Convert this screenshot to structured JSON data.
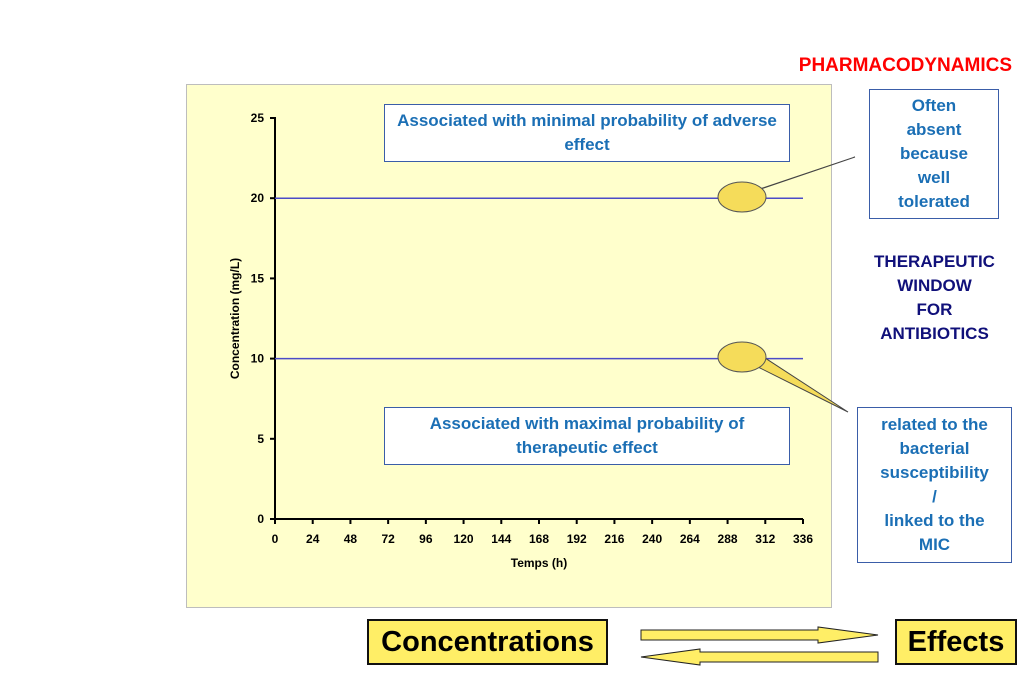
{
  "header": {
    "title": "PHARMACODYNAMICS"
  },
  "colors": {
    "panel_bg": "#ffffcc",
    "line": "#4b4bc8",
    "accent_text": "#1b6fb5",
    "title_red": "#ff0000",
    "window_text": "#10107a",
    "ellipse": "#f5dc5a",
    "button_bg": "#ffee66"
  },
  "chart_data": {
    "type": "line",
    "x": [
      0,
      24,
      48,
      72,
      96,
      120,
      144,
      168,
      192,
      216,
      240,
      264,
      288,
      312,
      336
    ],
    "xlabel": "Temps (h)",
    "ylabel": "Concentration (mg/L)",
    "xlim": [
      0,
      336
    ],
    "ylim": [
      0,
      25
    ],
    "yticks": [
      0,
      5,
      10,
      15,
      20,
      25
    ],
    "series": [
      {
        "values": [
          20,
          20,
          20,
          20,
          20,
          20,
          20,
          20,
          20,
          20,
          20,
          20,
          20,
          20,
          20
        ]
      },
      {
        "values": [
          10,
          10,
          10,
          10,
          10,
          10,
          10,
          10,
          10,
          10,
          10,
          10,
          10,
          10,
          10
        ]
      }
    ],
    "annotations": {
      "upper": "Associated with minimal probability of adverse effect",
      "lower": "Associated with maximal probability of therapeutic effect"
    },
    "grid": false
  },
  "side": {
    "top_note": "Often\nabsent\nbecause\nwell\ntolerated",
    "window_label": "THERAPEUTIC\nWINDOW\nFOR\nANTIBIOTICS",
    "bottom_note": "related to the\nbacterial\nsusceptibility\n/\nlinked to the\nMIC"
  },
  "flow": {
    "left_label": "Concentrations",
    "right_label": "Effects",
    "arrow_icons": [
      "arrow-right-icon",
      "arrow-left-icon"
    ]
  }
}
